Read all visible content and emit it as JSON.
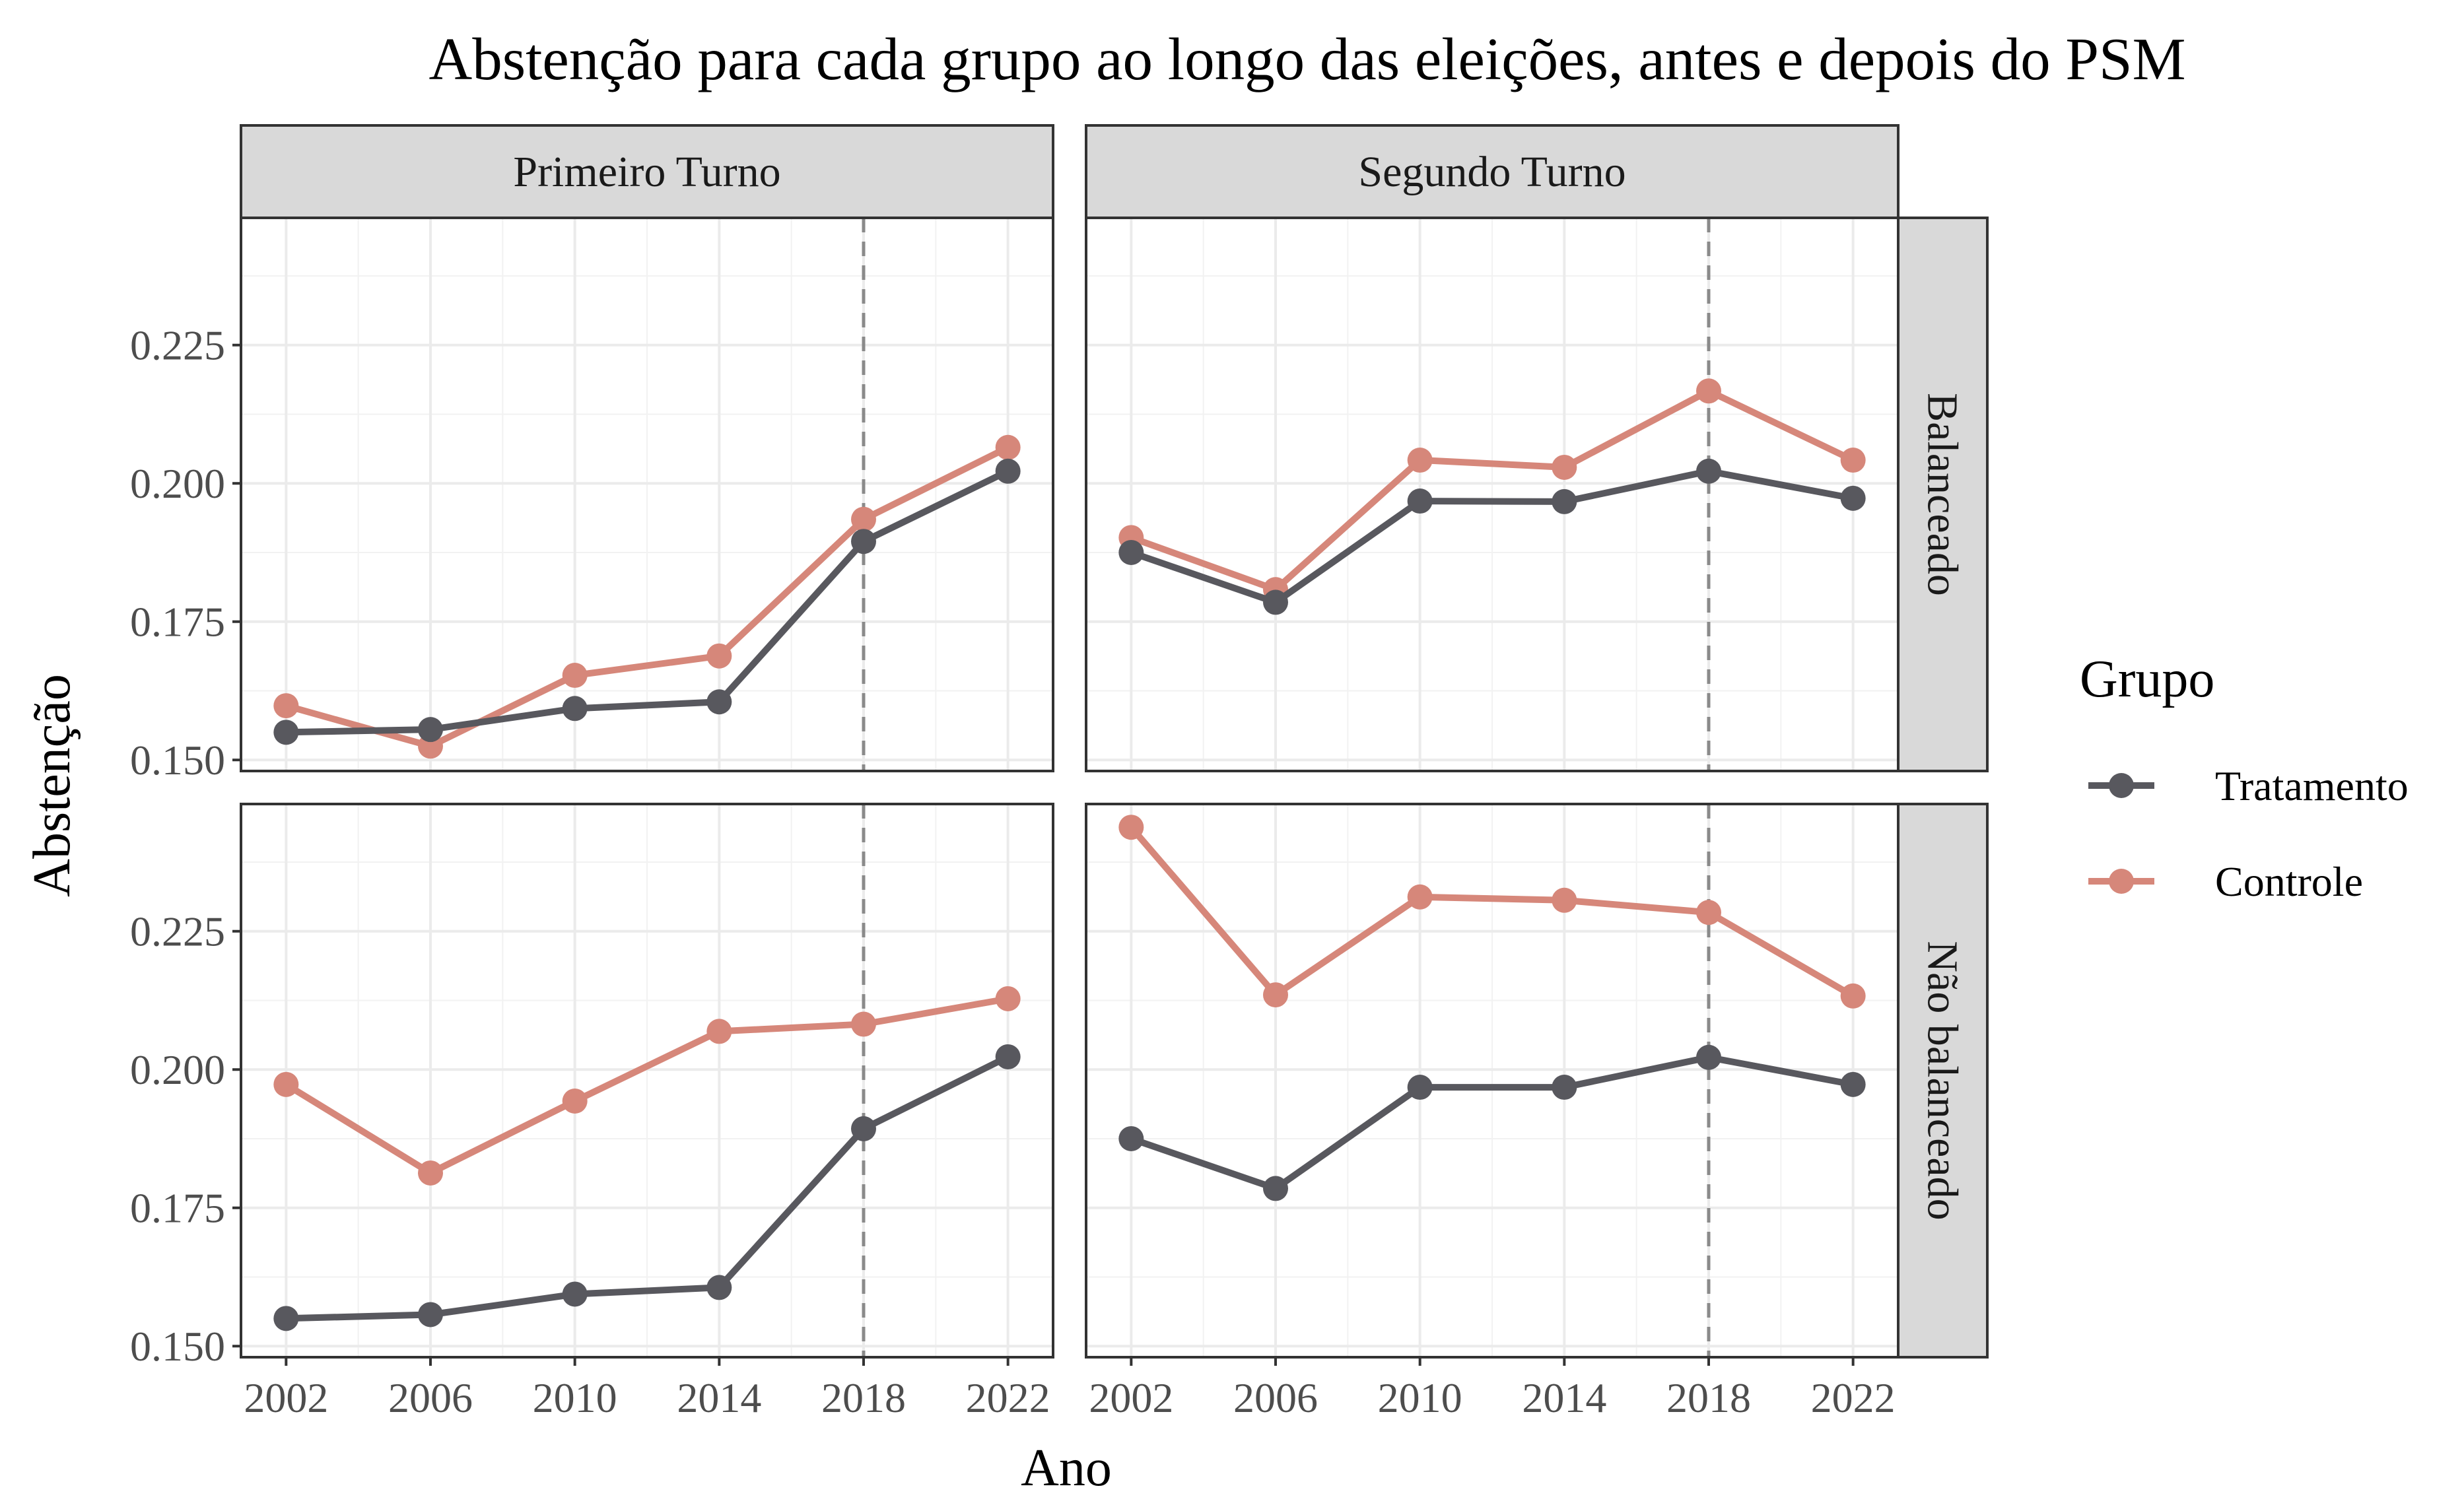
{
  "chart_data": {
    "type": "line",
    "title": "Abstenção para cada grupo ao longo das eleições, antes e depois do PSM",
    "xlabel": "Ano",
    "ylabel": "Abstenção",
    "x": [
      2002,
      2006,
      2010,
      2014,
      2018,
      2022
    ],
    "x_ticks": [
      "2002",
      "2006",
      "2010",
      "2014",
      "2018",
      "2022"
    ],
    "y_ticks": [
      "0.150",
      "0.175",
      "0.200",
      "0.225"
    ],
    "ylim": [
      0.148,
      0.248
    ],
    "treatment_year": 2018,
    "grid": true,
    "facet_columns": [
      "Primeiro Turno",
      "Segundo Turno"
    ],
    "facet_rows": [
      "Balanceado",
      "Não balanceado"
    ],
    "legend": {
      "title": "Grupo",
      "position": "right",
      "entries": [
        {
          "name": "Tratamento",
          "color": "#58585e"
        },
        {
          "name": "Controle",
          "color": "#d6877a"
        }
      ]
    },
    "panels": [
      {
        "column": "Primeiro Turno",
        "row": "Balanceado",
        "series": [
          {
            "name": "Tratamento",
            "values": [
              0.155,
              0.1555,
              0.1593,
              0.1605,
              0.1895,
              0.2022
            ]
          },
          {
            "name": "Controle",
            "values": [
              0.1598,
              0.1525,
              0.1653,
              0.1688,
              0.1935,
              0.2065
            ]
          }
        ]
      },
      {
        "column": "Segundo Turno",
        "row": "Balanceado",
        "series": [
          {
            "name": "Tratamento",
            "values": [
              0.1875,
              0.1785,
              0.1968,
              0.1967,
              0.2022,
              0.1973
            ]
          },
          {
            "name": "Controle",
            "values": [
              0.1902,
              0.1808,
              0.2042,
              0.2029,
              0.2167,
              0.2042
            ]
          }
        ]
      },
      {
        "column": "Primeiro Turno",
        "row": "Não balanceado",
        "series": [
          {
            "name": "Tratamento",
            "values": [
              0.155,
              0.1557,
              0.1594,
              0.1606,
              0.1893,
              0.2023
            ]
          },
          {
            "name": "Controle",
            "values": [
              0.1973,
              0.1813,
              0.1943,
              0.2069,
              0.2082,
              0.2128
            ]
          }
        ]
      },
      {
        "column": "Segundo Turno",
        "row": "Não balanceado",
        "series": [
          {
            "name": "Tratamento",
            "values": [
              0.1875,
              0.1785,
              0.1968,
              0.1968,
              0.2022,
              0.1973
            ]
          },
          {
            "name": "Controle",
            "values": [
              0.2438,
              0.2135,
              0.2312,
              0.2306,
              0.2284,
              0.2133
            ]
          }
        ]
      }
    ]
  }
}
